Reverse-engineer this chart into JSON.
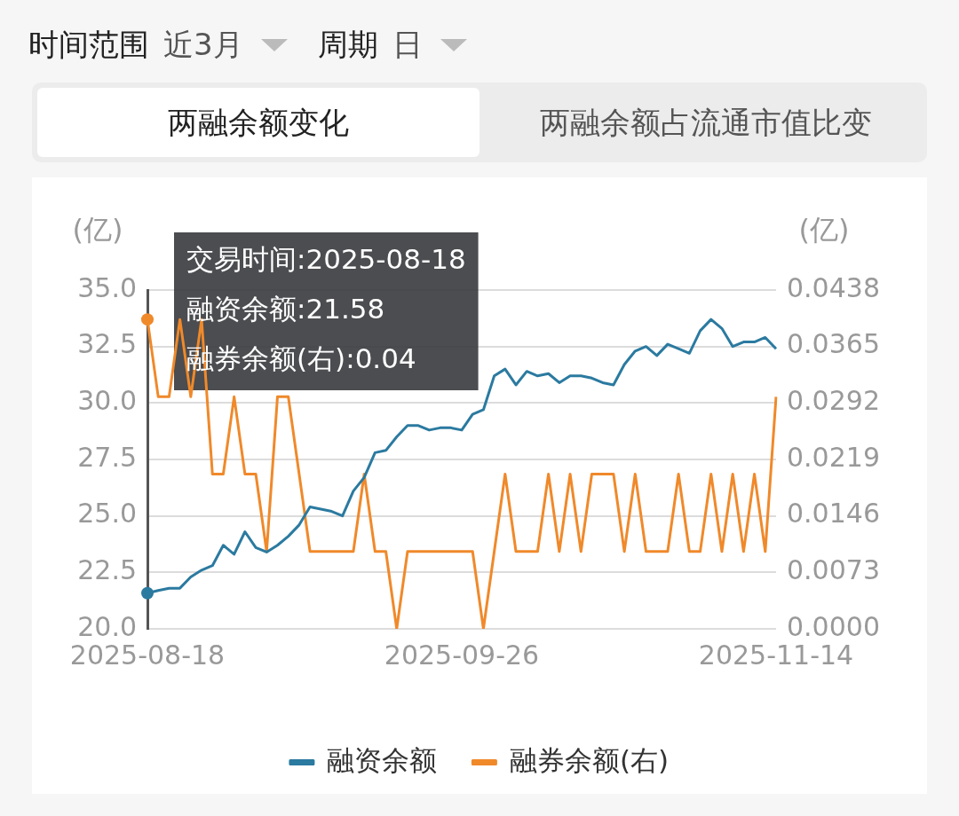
{
  "chart_data": {
    "type": "line",
    "title": "两融余额变化",
    "categories": [
      "2025-08-18",
      null,
      null,
      null,
      null,
      null,
      null,
      null,
      null,
      null,
      null,
      null,
      null,
      null,
      null,
      null,
      null,
      null,
      null,
      null,
      null,
      null,
      null,
      null,
      null,
      null,
      null,
      null,
      null,
      "2025-09-26",
      null,
      null,
      null,
      null,
      null,
      null,
      null,
      null,
      null,
      null,
      null,
      null,
      null,
      null,
      null,
      null,
      null,
      null,
      null,
      null,
      null,
      null,
      null,
      null,
      null,
      null,
      null,
      null,
      "2025-11-14"
    ],
    "series": [
      {
        "name": "融资余额",
        "color": "#2b7aa0",
        "values": [
          21.58,
          21.7,
          21.8,
          21.8,
          22.3,
          22.6,
          22.8,
          23.7,
          23.3,
          24.3,
          23.6,
          23.4,
          23.7,
          24.1,
          24.6,
          25.4,
          25.3,
          25.2,
          25.0,
          26.1,
          26.7,
          27.8,
          27.9,
          28.5,
          29.0,
          29.0,
          28.8,
          28.9,
          28.9,
          28.8,
          29.5,
          29.7,
          31.2,
          31.5,
          30.8,
          31.4,
          31.2,
          31.3,
          30.9,
          31.2,
          31.2,
          31.1,
          30.9,
          30.8,
          31.7,
          32.3,
          32.5,
          32.1,
          32.6,
          32.4,
          32.2,
          33.2,
          33.7,
          33.3,
          32.5,
          32.7,
          32.7,
          32.9,
          32.4
        ]
      },
      {
        "name": "融券余额(右)",
        "color": "#f0892a",
        "axis": "y2",
        "values": [
          0.04,
          0.03,
          0.03,
          0.04,
          0.03,
          0.04,
          0.02,
          0.02,
          0.03,
          0.02,
          0.02,
          0.01,
          0.03,
          0.03,
          0.02,
          0.01,
          0.01,
          0.01,
          0.01,
          0.01,
          0.02,
          0.01,
          0.01,
          0,
          0.01,
          0.01,
          0.01,
          0.01,
          0.01,
          0.01,
          0.01,
          0,
          0.01,
          0.02,
          0.01,
          0.01,
          0.01,
          0.02,
          0.01,
          0.02,
          0.01,
          0.02,
          0.02,
          0.02,
          0.01,
          0.02,
          0.01,
          0.01,
          0.01,
          0.02,
          0.01,
          0.01,
          0.02,
          0.01,
          0.02,
          0.01,
          0.02,
          0.01,
          0.03
        ]
      }
    ],
    "ylabel": "(亿)",
    "y2label": "(亿)",
    "ylim": [
      20,
      35
    ],
    "yticks": [
      {
        "value": 20,
        "label": "20.0"
      },
      {
        "value": 22.5,
        "label": "22.5"
      },
      {
        "value": 25,
        "label": "25.0"
      },
      {
        "value": 27.5,
        "label": "27.5"
      },
      {
        "value": 30,
        "label": "30.0"
      },
      {
        "value": 32.5,
        "label": "32.5"
      },
      {
        "value": 35,
        "label": "35.0"
      }
    ],
    "y2lim": [
      0,
      0.0438
    ],
    "y2ticks": [
      {
        "value": 0,
        "label": "0.0000"
      },
      0.0073,
      0.0146,
      0.0219,
      0.0292,
      0.0365,
      0.0438
    ],
    "grid": "y",
    "legend": "bottom",
    "marker": "none",
    "line_style": "solid",
    "annotations": [
      "时间范围",
      "近3月",
      "周期",
      "日",
      "两融余额占流通市值比变",
      "交易时间:2025-08-18\n融资余额:21.58\n融券余额(右):0.04"
    ]
  }
}
